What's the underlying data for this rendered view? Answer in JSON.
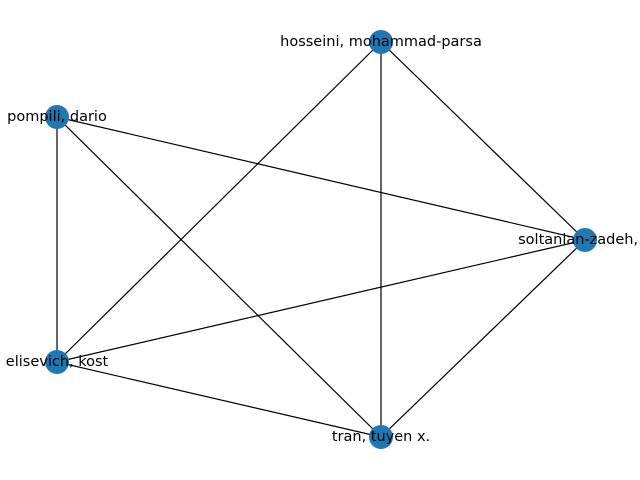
{
  "graph": {
    "node_color": "#1f77b4",
    "edge_color": "#000000",
    "nodes": [
      {
        "id": "hosseini",
        "label": "hosseini, mohammad-parsa"
      },
      {
        "id": "pompili",
        "label": "pompili, dario"
      },
      {
        "id": "soltanian",
        "label": "soltanian-zadeh, h"
      },
      {
        "id": "elisevich",
        "label": "elisevich, kost"
      },
      {
        "id": "tran",
        "label": "tran, tuyen x."
      }
    ],
    "edges": [
      {
        "source": "hosseini",
        "target": "soltanian"
      },
      {
        "source": "hosseini",
        "target": "elisevich"
      },
      {
        "source": "hosseini",
        "target": "tran"
      },
      {
        "source": "pompili",
        "target": "soltanian"
      },
      {
        "source": "pompili",
        "target": "elisevich"
      },
      {
        "source": "pompili",
        "target": "tran"
      },
      {
        "source": "soltanian",
        "target": "elisevich"
      },
      {
        "source": "soltanian",
        "target": "tran"
      },
      {
        "source": "elisevich",
        "target": "tran"
      }
    ]
  }
}
